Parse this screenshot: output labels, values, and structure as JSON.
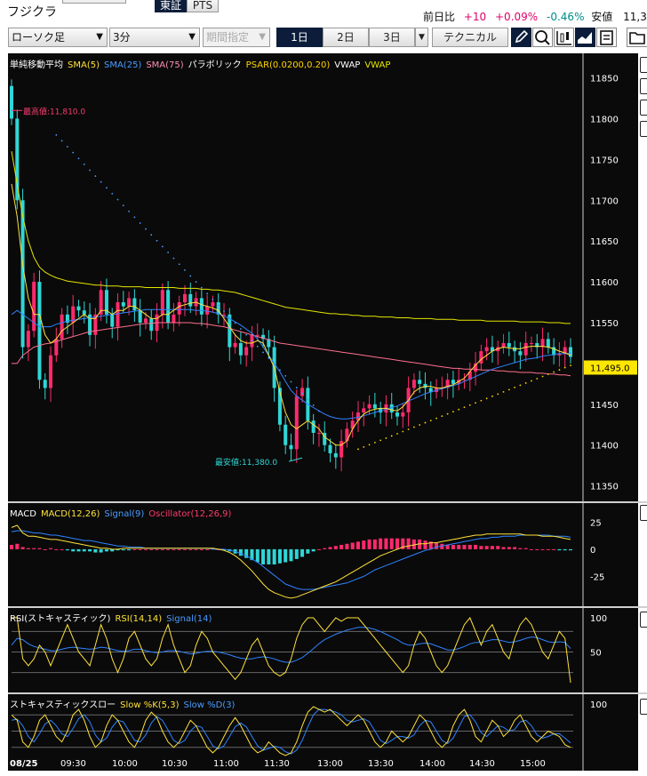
{
  "header": {
    "title": "フジクラ",
    "exchange_tabs": [
      "東証",
      "PTS"
    ],
    "change_label": "前日比",
    "change_value": "+10",
    "change_pct": "+0.09%",
    "low_pct": "-0.46%",
    "low_label": "安値",
    "low_value": "11,3"
  },
  "toolbar": {
    "chart_type": "ローソク足",
    "interval": "3分",
    "period_placeholder": "期間指定",
    "range_buttons": [
      "1日",
      "2日",
      "3日"
    ],
    "technical_label": "テクニカル",
    "icons": [
      "pencil-icon",
      "zoom-icon",
      "candlestick-icon",
      "area-chart-icon",
      "save-icon",
      "folder-icon"
    ]
  },
  "colors": {
    "background": "#0a0a0a",
    "candle_up": "#ff2a6d",
    "candle_down": "#30d6d6",
    "sma5": "#ffe23b",
    "sma25": "#2e83ff",
    "sma75": "#ff6f8e",
    "psar": "#ffd500",
    "vwap": "#e6e600"
  },
  "chart_data": [
    {
      "type": "candlestick",
      "legend": [
        {
          "text": "単純移動平均",
          "color": "#ffffff"
        },
        {
          "text": "SMA(5)",
          "color": "#ffe23b"
        },
        {
          "text": "SMA(25)",
          "color": "#4a9bff"
        },
        {
          "text": "SMA(75)",
          "color": "#ff8fb0"
        },
        {
          "text": "パラボリック",
          "color": "#ffffff"
        },
        {
          "text": "PSAR(0.0200,0.20)",
          "color": "#ffd500"
        },
        {
          "text": "VWAP",
          "color": "#ffffff"
        },
        {
          "text": "VWAP",
          "color": "#e6e600"
        }
      ],
      "y_ticks": [
        "11850",
        "11800",
        "11750",
        "11700",
        "11650",
        "11600",
        "11550",
        "11500",
        "11450",
        "11400",
        "11350"
      ],
      "ylim": [
        11330,
        11880
      ],
      "current_price": "11,495.0",
      "annotations": {
        "high": {
          "text": "最高値:11,810.0",
          "value": 11810
        },
        "low": {
          "text": "最安値:11,380.0",
          "value": 11380
        }
      },
      "closes": [
        11800,
        11700,
        11520,
        11540,
        11600,
        11480,
        11470,
        11510,
        11530,
        11560,
        11550,
        11570,
        11565,
        11560,
        11535,
        11560,
        11590,
        11560,
        11545,
        11575,
        11570,
        11580,
        11565,
        11550,
        11555,
        11540,
        11560,
        11590,
        11550,
        11560,
        11575,
        11585,
        11570,
        11580,
        11560,
        11570,
        11575,
        11560,
        11560,
        11520,
        11525,
        11510,
        11520,
        11535,
        11535,
        11530,
        11520,
        11470,
        11425,
        11400,
        11395,
        11460,
        11470,
        11430,
        11415,
        11415,
        11400,
        11390,
        11385,
        11405,
        11420,
        11430,
        11440,
        11445,
        11450,
        11445,
        11440,
        11450,
        11440,
        11435,
        11440,
        11470,
        11480,
        11475,
        11470,
        11465,
        11470,
        11470,
        11480,
        11475,
        11480,
        11480,
        11490,
        11500,
        11515,
        11520,
        11515,
        11520,
        11525,
        11520,
        11515,
        11510,
        11525,
        11525,
        11520,
        11530,
        11520,
        11510,
        11512,
        11520,
        11508
      ],
      "sma5": [
        11720,
        11680,
        11620,
        11580,
        11560,
        11560,
        11535,
        11525,
        11530,
        11540,
        11545,
        11550,
        11555,
        11560,
        11555,
        11555,
        11565,
        11565,
        11560,
        11565,
        11565,
        11570,
        11570,
        11565,
        11560,
        11555,
        11555,
        11560,
        11560,
        11565,
        11570,
        11572,
        11574,
        11575,
        11572,
        11570,
        11568,
        11565,
        11555,
        11545,
        11535,
        11528,
        11525,
        11525,
        11528,
        11525,
        11510,
        11495,
        11465,
        11440,
        11425,
        11420,
        11425,
        11430,
        11425,
        11420,
        11410,
        11405,
        11400,
        11400,
        11405,
        11420,
        11430,
        11438,
        11442,
        11444,
        11445,
        11445,
        11443,
        11442,
        11447,
        11455,
        11465,
        11470,
        11472,
        11472,
        11470,
        11470,
        11472,
        11474,
        11478,
        11482,
        11490,
        11498,
        11505,
        11510,
        11515,
        11518,
        11520,
        11519,
        11518,
        11518,
        11520,
        11521,
        11521,
        11521,
        11520,
        11518,
        11515,
        11513,
        11510
      ],
      "sma25": [
        11560,
        11565,
        11560,
        11555,
        11550,
        11545,
        11545,
        11545,
        11548,
        11550,
        11552,
        11553,
        11554,
        11555,
        11556,
        11557,
        11558,
        11559,
        11560,
        11561,
        11562,
        11563,
        11564,
        11565,
        11566,
        11566,
        11566,
        11566,
        11566,
        11566,
        11566,
        11566,
        11566,
        11565,
        11565,
        11564,
        11563,
        11561,
        11558,
        11555,
        11551,
        11547,
        11542,
        11537,
        11530,
        11520,
        11510,
        11500,
        11490,
        11478,
        11467,
        11460,
        11455,
        11450,
        11446,
        11442,
        11438,
        11435,
        11433,
        11432,
        11432,
        11433,
        11434,
        11436,
        11438,
        11440,
        11442,
        11444,
        11446,
        11448,
        11451,
        11454,
        11457,
        11460,
        11463,
        11465,
        11467,
        11469,
        11471,
        11473,
        11475,
        11478,
        11481,
        11484,
        11487,
        11490,
        11493,
        11495,
        11497,
        11499,
        11501,
        11503,
        11505,
        11506,
        11507,
        11509,
        11510,
        11511,
        11512,
        11512,
        11513
      ],
      "sma75": [
        11500,
        11500,
        11510,
        11515,
        11520,
        11522,
        11524,
        11525,
        11527,
        11529,
        11531,
        11533,
        11535,
        11537,
        11539,
        11540,
        11541,
        11542,
        11543,
        11544,
        11545,
        11546,
        11547,
        11548,
        11549,
        11549,
        11550,
        11550,
        11550,
        11550,
        11550,
        11550,
        11550,
        11549,
        11549,
        11548,
        11547,
        11546,
        11545,
        11543,
        11541,
        11539,
        11537,
        11535,
        11533,
        11531,
        11529,
        11527,
        11525,
        11524,
        11523,
        11522,
        11521,
        11520,
        11519,
        11518,
        11517,
        11516,
        11515,
        11514,
        11513,
        11512,
        11511,
        11510,
        11509,
        11508,
        11507,
        11506,
        11505,
        11504,
        11503,
        11502,
        11501,
        11500,
        11499,
        11498,
        11497,
        11496,
        11495,
        11494,
        11494,
        11493,
        11493,
        11493,
        11492,
        11492,
        11492,
        11491,
        11491,
        11490,
        11490,
        11489,
        11489,
        11489,
        11488,
        11488,
        11487,
        11487,
        11486,
        11486,
        11485
      ],
      "vwap": [
        11760,
        11720,
        11680,
        11650,
        11630,
        11618,
        11612,
        11608,
        11605,
        11603,
        11601,
        11600,
        11599,
        11598,
        11597,
        11596,
        11596,
        11595,
        11595,
        11595,
        11594,
        11594,
        11594,
        11594,
        11593,
        11593,
        11593,
        11593,
        11593,
        11593,
        11592,
        11592,
        11592,
        11592,
        11591,
        11591,
        11590,
        11590,
        11589,
        11588,
        11587,
        11585,
        11583,
        11581,
        11579,
        11577,
        11575,
        11573,
        11571,
        11569,
        11568,
        11567,
        11566,
        11565,
        11564,
        11563,
        11562,
        11561,
        11561,
        11560,
        11560,
        11559,
        11559,
        11558,
        11558,
        11558,
        11557,
        11557,
        11557,
        11556,
        11556,
        11556,
        11555,
        11555,
        11555,
        11555,
        11554,
        11554,
        11554,
        11554,
        11553,
        11553,
        11553,
        11553,
        11553,
        11552,
        11552,
        11552,
        11552,
        11552,
        11552,
        11551,
        11551,
        11551,
        11551,
        11551,
        11550,
        11550,
        11550,
        11549,
        11549
      ]
    },
    {
      "type": "line",
      "legend": [
        {
          "text": "MACD",
          "color": "#ffffff"
        },
        {
          "text": "MACD(12,26)",
          "color": "#ffe23b"
        },
        {
          "text": "Signal(9)",
          "color": "#4a9bff"
        },
        {
          "text": "Oscillator(12,26,9)",
          "color": "#ff3b6e"
        }
      ],
      "y_ticks": [
        "25",
        "0",
        "-25"
      ],
      "ylim": [
        -50,
        40
      ],
      "macd": [
        20,
        22,
        15,
        12,
        12,
        11,
        10,
        9,
        9,
        8,
        7,
        6,
        5,
        4,
        3,
        2,
        1,
        1,
        0,
        0,
        1,
        1,
        1,
        1,
        1,
        1,
        1,
        1,
        1,
        1,
        1,
        1,
        1,
        1,
        1,
        1,
        1,
        0,
        -1,
        -3,
        -6,
        -10,
        -15,
        -20,
        -26,
        -32,
        -37,
        -40,
        -42,
        -44,
        -45,
        -44,
        -42,
        -40,
        -38,
        -36,
        -34,
        -32,
        -30,
        -27,
        -24,
        -21,
        -18,
        -15,
        -12,
        -9,
        -6,
        -4,
        -2,
        0,
        2,
        3,
        4,
        5,
        5,
        6,
        6,
        7,
        8,
        9,
        10,
        11,
        12,
        13,
        13,
        14,
        14,
        14,
        14,
        14,
        14,
        14,
        13,
        13,
        13,
        12,
        12,
        12,
        11,
        10,
        9
      ],
      "signal": [
        16,
        17,
        17,
        16,
        15,
        15,
        14,
        13,
        13,
        12,
        11,
        10,
        9,
        8,
        8,
        7,
        6,
        5,
        4,
        3,
        3,
        2,
        2,
        2,
        1,
        1,
        1,
        1,
        1,
        1,
        1,
        1,
        1,
        1,
        1,
        1,
        0,
        0,
        0,
        -1,
        -2,
        -4,
        -6,
        -9,
        -12,
        -16,
        -20,
        -24,
        -28,
        -32,
        -34,
        -36,
        -37,
        -37,
        -37,
        -36,
        -35,
        -34,
        -33,
        -32,
        -31,
        -29,
        -27,
        -25,
        -22,
        -19,
        -17,
        -15,
        -13,
        -11,
        -9,
        -7,
        -5,
        -3,
        -1,
        0,
        2,
        3,
        4,
        5,
        6,
        7,
        8,
        9,
        10,
        10,
        11,
        11,
        12,
        12,
        12,
        13,
        13,
        13,
        13,
        13,
        13,
        12,
        12,
        12,
        11
      ],
      "oscillator": [
        4,
        5,
        2,
        1,
        1,
        1,
        0,
        1,
        0,
        0,
        -1,
        -2,
        -2,
        -2,
        -2,
        -3,
        -3,
        -2,
        -2,
        -1,
        -1,
        -1,
        0,
        0,
        0,
        0,
        0,
        0,
        0,
        0,
        0,
        0,
        0,
        0,
        0,
        0,
        1,
        0,
        -1,
        -2,
        -4,
        -6,
        -8,
        -10,
        -12,
        -14,
        -14,
        -14,
        -13,
        -12,
        -11,
        -9,
        -7,
        -4,
        -2,
        0,
        1,
        2,
        3,
        4,
        5,
        6,
        7,
        8,
        9,
        9,
        10,
        10,
        10,
        10,
        10,
        10,
        9,
        9,
        8,
        7,
        6,
        5,
        4,
        4,
        4,
        4,
        4,
        4,
        3,
        3,
        3,
        3,
        2,
        2,
        2,
        1,
        1,
        0,
        0,
        0,
        0,
        0,
        -1,
        -1,
        -1
      ]
    },
    {
      "type": "line",
      "legend": [
        {
          "text": "RSI(ストキャスティック)",
          "color": "#ffffff"
        },
        {
          "text": "RSI(14,14)",
          "color": "#ffe23b"
        },
        {
          "text": "Signal(14)",
          "color": "#4a9bff"
        }
      ],
      "y_ticks": [
        "100",
        "50"
      ],
      "ylim": [
        0,
        100
      ],
      "rsi": [
        100,
        100,
        40,
        30,
        40,
        60,
        50,
        30,
        50,
        70,
        90,
        70,
        50,
        40,
        30,
        60,
        90,
        70,
        40,
        20,
        40,
        70,
        80,
        60,
        40,
        30,
        40,
        70,
        90,
        60,
        40,
        20,
        30,
        60,
        80,
        70,
        50,
        40,
        30,
        20,
        10,
        20,
        40,
        60,
        70,
        50,
        30,
        20,
        15,
        20,
        40,
        70,
        90,
        100,
        100,
        90,
        80,
        90,
        100,
        95,
        100,
        100,
        100,
        90,
        80,
        70,
        60,
        50,
        40,
        30,
        20,
        30,
        60,
        80,
        70,
        50,
        30,
        20,
        30,
        50,
        70,
        90,
        100,
        80,
        60,
        80,
        90,
        70,
        50,
        40,
        70,
        90,
        100,
        90,
        70,
        50,
        40,
        60,
        80,
        70,
        5
      ],
      "rsi_signal": [
        60,
        70,
        68,
        62,
        58,
        56,
        54,
        52,
        52,
        54,
        56,
        57,
        56,
        55,
        54,
        55,
        57,
        56,
        54,
        52,
        51,
        52,
        54,
        54,
        52,
        50,
        49,
        50,
        52,
        52,
        51,
        49,
        47,
        48,
        50,
        51,
        51,
        50,
        48,
        46,
        43,
        41,
        40,
        40,
        42,
        43,
        42,
        40,
        37,
        35,
        35,
        38,
        42,
        48,
        55,
        62,
        68,
        72,
        76,
        79,
        82,
        84,
        86,
        86,
        85,
        83,
        80,
        76,
        72,
        68,
        63,
        60,
        60,
        62,
        63,
        62,
        59,
        56,
        53,
        53,
        55,
        58,
        62,
        64,
        64,
        66,
        68,
        68,
        66,
        64,
        65,
        67,
        70,
        72,
        71,
        68,
        65,
        64,
        65,
        64,
        55
      ]
    },
    {
      "type": "line",
      "legend": [
        {
          "text": "ストキャスティックスロー",
          "color": "#ffffff"
        },
        {
          "text": "Slow %K(5,3)",
          "color": "#ffe23b"
        },
        {
          "text": "Slow %D(3)",
          "color": "#4a9bff"
        }
      ],
      "y_ticks": [
        "100"
      ],
      "ylim": [
        0,
        100
      ],
      "slow_k": [
        80,
        70,
        30,
        20,
        40,
        70,
        80,
        60,
        40,
        30,
        50,
        80,
        90,
        70,
        40,
        20,
        30,
        60,
        80,
        70,
        50,
        30,
        20,
        40,
        70,
        85,
        75,
        50,
        30,
        20,
        30,
        50,
        70,
        60,
        40,
        20,
        10,
        20,
        40,
        60,
        75,
        60,
        40,
        20,
        10,
        15,
        30,
        20,
        10,
        5,
        10,
        30,
        60,
        85,
        95,
        90,
        85,
        90,
        80,
        70,
        60,
        70,
        80,
        70,
        50,
        30,
        20,
        30,
        50,
        40,
        30,
        40,
        60,
        80,
        70,
        50,
        30,
        20,
        30,
        60,
        80,
        90,
        70,
        40,
        30,
        50,
        70,
        60,
        40,
        50,
        70,
        80,
        60,
        40,
        30,
        40,
        50,
        45,
        40,
        25,
        20
      ],
      "slow_d": [
        70,
        72,
        60,
        40,
        30,
        45,
        63,
        70,
        60,
        45,
        40,
        55,
        73,
        80,
        67,
        43,
        30,
        37,
        57,
        70,
        67,
        50,
        33,
        30,
        43,
        65,
        77,
        70,
        52,
        33,
        27,
        33,
        50,
        60,
        57,
        40,
        23,
        17,
        23,
        40,
        58,
        65,
        58,
        40,
        23,
        15,
        18,
        22,
        20,
        12,
        8,
        15,
        33,
        58,
        80,
        90,
        90,
        88,
        85,
        80,
        70,
        67,
        70,
        73,
        67,
        50,
        33,
        27,
        33,
        40,
        40,
        37,
        43,
        60,
        70,
        67,
        50,
        33,
        27,
        37,
        57,
        77,
        80,
        67,
        47,
        40,
        50,
        60,
        57,
        50,
        53,
        67,
        70,
        60,
        43,
        37,
        40,
        45,
        45,
        37,
        28
      ]
    }
  ],
  "x_axis": {
    "labels": [
      "08/25",
      "09:30",
      "10:00",
      "10:30",
      "11:00",
      "11:30",
      "13:00",
      "13:30",
      "14:00",
      "14:30",
      "15:00"
    ]
  }
}
